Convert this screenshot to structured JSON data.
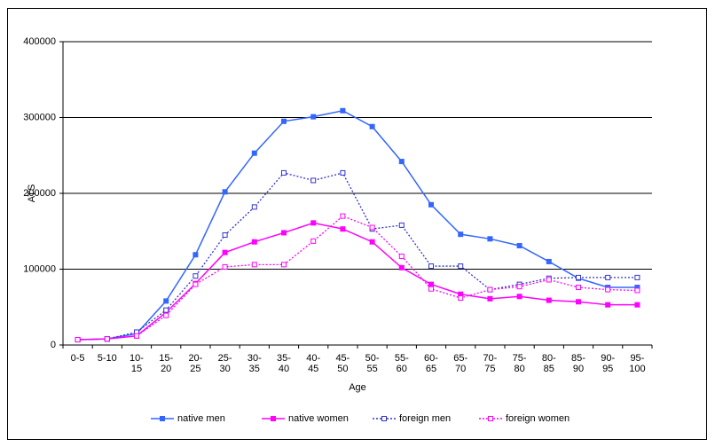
{
  "chart_data": {
    "type": "line",
    "x_label": "Age",
    "y_label": "ATS",
    "categories": [
      "0-5",
      "5-10",
      "10-15",
      "15-20",
      "20-25",
      "25-30",
      "30-35",
      "35-40",
      "40-45",
      "45-50",
      "50-55",
      "55-60",
      "60-65",
      "65-70",
      "70-75",
      "75-80",
      "80-85",
      "85-90",
      "90-95",
      "95-100"
    ],
    "series": [
      {
        "name": "native men",
        "color": "#3366ff",
        "line_style": "solid",
        "marker": "filled",
        "values": [
          7000,
          8000,
          15000,
          58000,
          119000,
          202000,
          253000,
          295000,
          301000,
          309000,
          288000,
          242000,
          185000,
          146000,
          140000,
          131000,
          110000,
          88000,
          76000,
          76000
        ]
      },
      {
        "name": "native women",
        "color": "#ff00ff",
        "line_style": "solid",
        "marker": "filled",
        "values": [
          7000,
          8000,
          12000,
          43000,
          81000,
          122000,
          136000,
          148000,
          161000,
          153000,
          136000,
          102000,
          80000,
          67000,
          61000,
          64000,
          59000,
          57000,
          53000,
          53000
        ]
      },
      {
        "name": "foreign men",
        "color": "#3333cc",
        "line_style": "dotted",
        "marker": "hollow",
        "values": [
          7000,
          8000,
          17000,
          46000,
          91000,
          145000,
          182000,
          227000,
          217000,
          227000,
          153000,
          158000,
          104000,
          104000,
          73000,
          80000,
          88000,
          89000,
          89000,
          89000
        ]
      },
      {
        "name": "foreign women",
        "color": "#ff00ff",
        "line_style": "dotted",
        "marker": "hollow",
        "values": [
          7000,
          8000,
          12000,
          39000,
          80000,
          103000,
          106000,
          106000,
          137000,
          170000,
          155000,
          117000,
          74000,
          62000,
          73000,
          77000,
          86000,
          76000,
          73000,
          72000
        ]
      }
    ],
    "ylim": [
      0,
      400000
    ],
    "yticks": [
      0,
      100000,
      200000,
      300000,
      400000
    ],
    "grid": true,
    "legend": "bottom"
  }
}
